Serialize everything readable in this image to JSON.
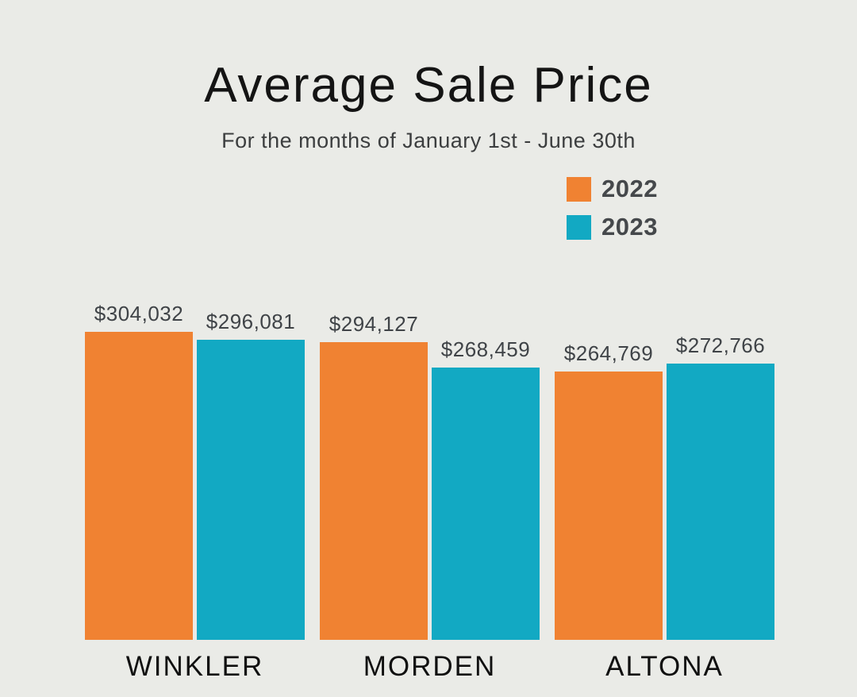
{
  "page": {
    "background_color": "#EAEBE7"
  },
  "header": {
    "title": "Average Sale Price",
    "subtitle": "For the months of January 1st - June 30th"
  },
  "legend": {
    "position": "top-right",
    "items": [
      {
        "label": "2022",
        "color": "#F08232"
      },
      {
        "label": "2023",
        "color": "#12A9C3"
      }
    ]
  },
  "chart_data": {
    "type": "bar",
    "title": "Average Sale Price",
    "subtitle": "For the months of January 1st - June 30th",
    "categories": [
      "WINKLER",
      "MORDEN",
      "ALTONA"
    ],
    "series": [
      {
        "name": "2022",
        "color": "#F08232",
        "values": [
          304032,
          294127,
          264769
        ],
        "labels": [
          "$304,032",
          "$294,127",
          "$264,769"
        ]
      },
      {
        "name": "2023",
        "color": "#12A9C3",
        "values": [
          296081,
          268459,
          272766
        ],
        "labels": [
          "$296,081",
          "$268,459",
          "$272,766"
        ]
      }
    ],
    "ylim": [
      0,
      320000
    ],
    "grid": false,
    "axes_shown": false,
    "value_labels_shown": true,
    "legend_position": "top-right",
    "value_label_format": "$#,###"
  }
}
